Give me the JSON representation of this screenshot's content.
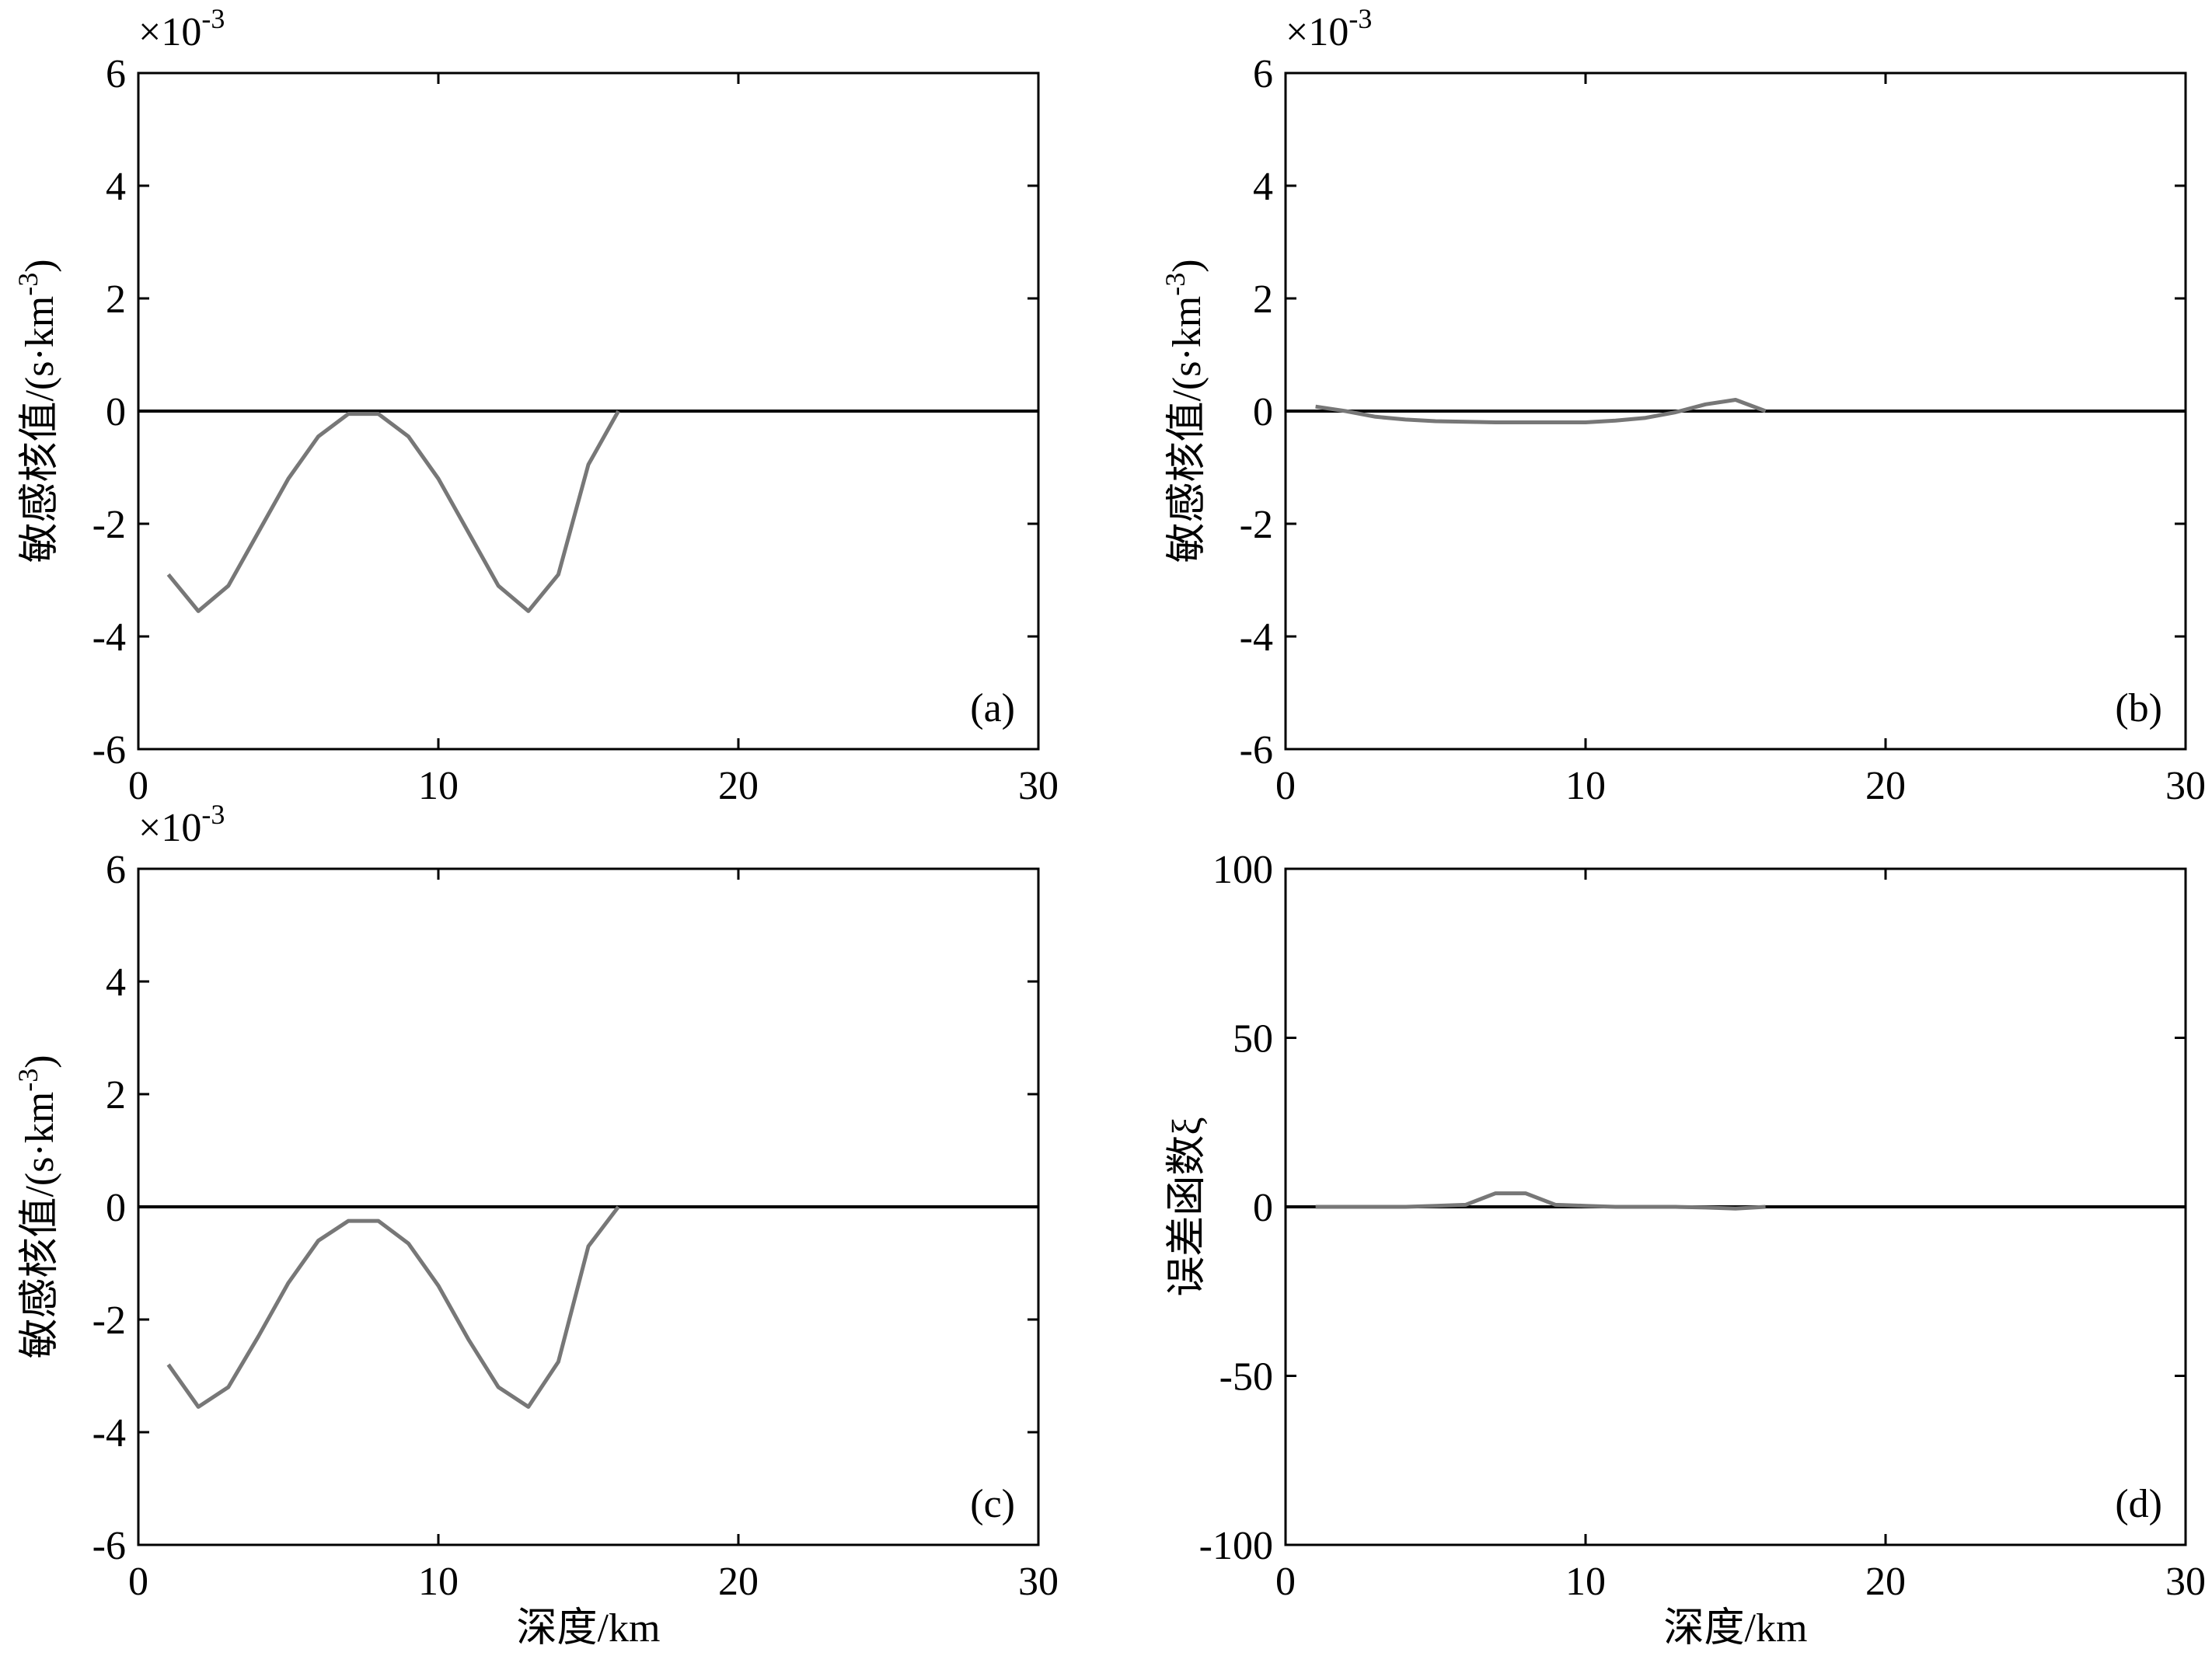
{
  "chart_data": [
    {
      "type": "line",
      "panel_label": "(a)",
      "xlabel": "",
      "ylabel": "敏感核值/(s·km",
      "ylabel_sup": "-3",
      "ylabel_tail": ")",
      "exponent_base": "×10",
      "exponent_power": "-3",
      "xlim": [
        0,
        30
      ],
      "ylim": [
        -6,
        6
      ],
      "xticks": [
        0,
        10,
        20,
        30
      ],
      "yticks": [
        -6,
        -4,
        -2,
        0,
        2,
        4,
        6
      ],
      "x_tick_labels": [
        "0",
        "10",
        "20",
        "30"
      ],
      "y_tick_labels": [
        "-6",
        "-4",
        "-2",
        "0",
        "2",
        "4",
        "6"
      ],
      "zero_line": true,
      "series": [
        {
          "color": "#777777",
          "x": [
            1,
            2,
            3,
            4,
            5,
            6,
            7,
            8,
            9,
            10,
            11,
            12,
            13,
            14,
            15,
            16
          ],
          "y": [
            -2.9,
            -3.55,
            -3.1,
            -2.15,
            -1.2,
            -0.45,
            -0.05,
            -0.05,
            -0.45,
            -1.2,
            -2.15,
            -3.1,
            -3.55,
            -2.9,
            -0.95,
            0
          ]
        }
      ]
    },
    {
      "type": "line",
      "panel_label": "(b)",
      "xlabel": "",
      "ylabel": "敏感核值/(s·km",
      "ylabel_sup": "-3",
      "ylabel_tail": ")",
      "exponent_base": "×10",
      "exponent_power": "-3",
      "xlim": [
        0,
        30
      ],
      "ylim": [
        -6,
        6
      ],
      "xticks": [
        0,
        10,
        20,
        30
      ],
      "yticks": [
        -6,
        -4,
        -2,
        0,
        2,
        4,
        6
      ],
      "x_tick_labels": [
        "0",
        "10",
        "20",
        "30"
      ],
      "y_tick_labels": [
        "-6",
        "-4",
        "-2",
        "0",
        "2",
        "4",
        "6"
      ],
      "zero_line": true,
      "series": [
        {
          "color": "#777777",
          "x": [
            1,
            2,
            3,
            4,
            5,
            6,
            7,
            8,
            9,
            10,
            11,
            12,
            13,
            14,
            15,
            16
          ],
          "y": [
            0.08,
            0.0,
            -0.1,
            -0.15,
            -0.18,
            -0.19,
            -0.2,
            -0.2,
            -0.2,
            -0.2,
            -0.17,
            -0.12,
            -0.02,
            0.12,
            0.2,
            0
          ]
        }
      ]
    },
    {
      "type": "line",
      "panel_label": "(c)",
      "xlabel": "深度/km",
      "ylabel": "敏感核值/(s·km",
      "ylabel_sup": "-3",
      "ylabel_tail": ")",
      "exponent_base": "×10",
      "exponent_power": "-3",
      "xlim": [
        0,
        30
      ],
      "ylim": [
        -6,
        6
      ],
      "xticks": [
        0,
        10,
        20,
        30
      ],
      "yticks": [
        -6,
        -4,
        -2,
        0,
        2,
        4,
        6
      ],
      "x_tick_labels": [
        "0",
        "10",
        "20",
        "30"
      ],
      "y_tick_labels": [
        "-6",
        "-4",
        "-2",
        "0",
        "2",
        "4",
        "6"
      ],
      "zero_line": true,
      "series": [
        {
          "color": "#777777",
          "x": [
            1,
            2,
            3,
            4,
            5,
            6,
            7,
            8,
            9,
            10,
            11,
            12,
            13,
            14,
            15,
            16
          ],
          "y": [
            -2.8,
            -3.55,
            -3.2,
            -2.3,
            -1.35,
            -0.6,
            -0.25,
            -0.25,
            -0.65,
            -1.4,
            -2.35,
            -3.2,
            -3.55,
            -2.75,
            -0.7,
            0
          ]
        }
      ]
    },
    {
      "type": "line",
      "panel_label": "(d)",
      "xlabel": "深度/km",
      "ylabel": "误差函数ξ",
      "ylabel_sup": "",
      "ylabel_tail": "",
      "exponent_base": "",
      "exponent_power": "",
      "xlim": [
        0,
        30
      ],
      "ylim": [
        -100,
        100
      ],
      "xticks": [
        0,
        10,
        20,
        30
      ],
      "yticks": [
        -100,
        -50,
        0,
        50,
        100
      ],
      "x_tick_labels": [
        "0",
        "10",
        "20",
        "30"
      ],
      "y_tick_labels": [
        "-100",
        "-50",
        "0",
        "50",
        "100"
      ],
      "zero_line": true,
      "series": [
        {
          "color": "#777777",
          "x": [
            1,
            2,
            3,
            4,
            5,
            6,
            7,
            8,
            9,
            10,
            11,
            12,
            13,
            14,
            15,
            16
          ],
          "y": [
            0,
            0,
            0,
            0,
            0.3,
            0.6,
            4,
            4,
            0.6,
            0.3,
            0,
            0,
            0,
            -0.2,
            -0.5,
            0
          ]
        }
      ]
    }
  ]
}
